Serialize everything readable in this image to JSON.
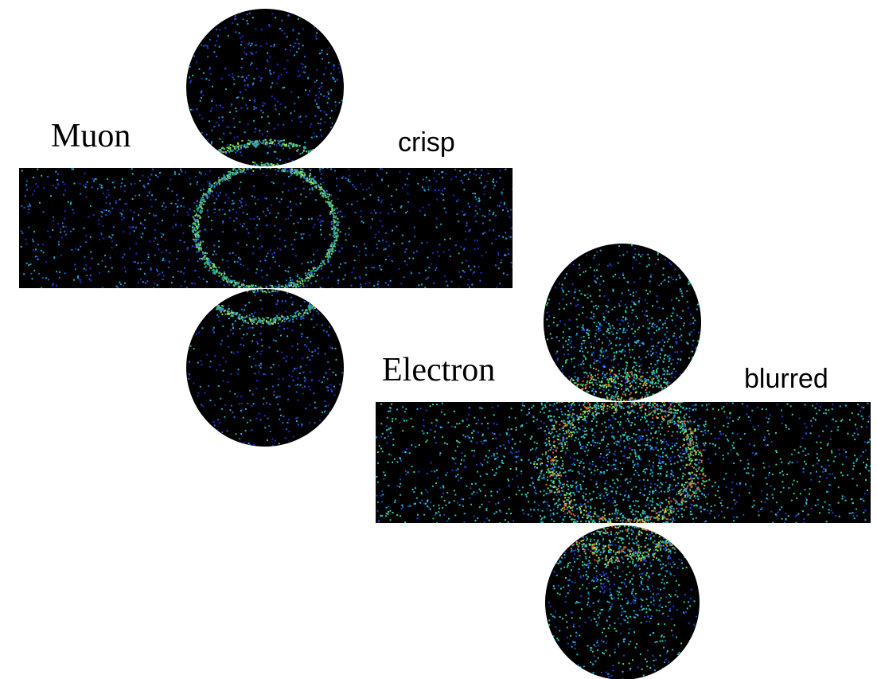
{
  "panels": [
    {
      "label": "Muon",
      "description": "crisp"
    },
    {
      "label": "Electron",
      "description": "blurred"
    }
  ]
}
